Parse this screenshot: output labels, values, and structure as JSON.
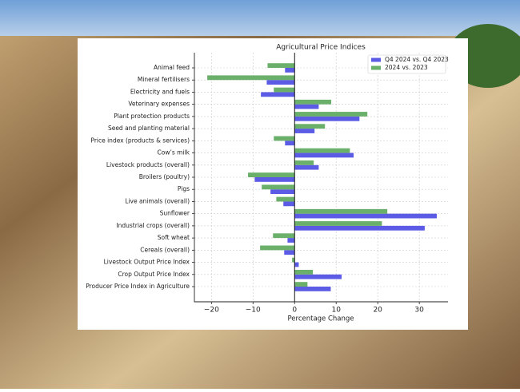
{
  "chart_data": {
    "type": "barh",
    "title": "Agricultural Price Indices",
    "xlabel": "Percentage Change",
    "categories": [
      "Animal feed",
      "Mineral fertilisers",
      "Electricity and fuels",
      "Veterinary expenses",
      "Plant protection products",
      "Seed and planting material",
      "Price index (products & services)",
      "Cow’s milk",
      "Livestock products (overall)",
      "Broilers (poultry)",
      "Pigs",
      "Live animals (overall)",
      "Sunflower",
      "Industrial crops (overall)",
      "Soft wheat",
      "Cereals (overall)",
      "Livestock Output Price Index",
      "Crop Output Price Index",
      "Producer Price Index in Agriculture"
    ],
    "series": [
      {
        "name": "Q4 2024 vs. Q4 2023",
        "color": "#5b5be6",
        "values": [
          -2.3,
          -6.7,
          -8.1,
          5.8,
          15.6,
          4.8,
          -2.3,
          14.2,
          5.8,
          -9.6,
          -5.8,
          -2.7,
          34.2,
          31.3,
          -1.7,
          -2.5,
          1.0,
          11.3,
          8.7
        ]
      },
      {
        "name": "2024 vs. 2023",
        "color": "#6aaf6a",
        "values": [
          -6.5,
          -21,
          -5,
          8.8,
          17.5,
          7.3,
          -5,
          13.3,
          4.6,
          -11.2,
          -7.9,
          -4.4,
          22.3,
          21,
          -5.2,
          -8.3,
          -0.6,
          4.4,
          3.1
        ]
      }
    ],
    "xlim": [
      -24.1,
      36.9
    ],
    "xticks": [
      {
        "value": -20,
        "label": "−20"
      },
      {
        "value": -10,
        "label": "−10"
      },
      0,
      10,
      20,
      30
    ],
    "grid": true,
    "legend": "upper right"
  }
}
